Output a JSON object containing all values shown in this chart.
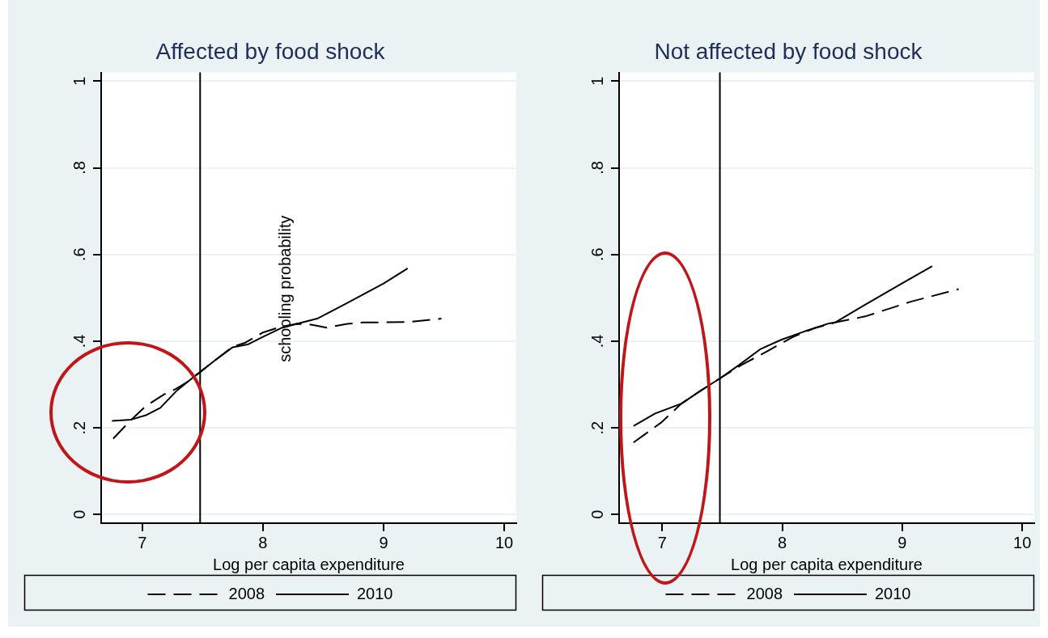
{
  "chart_data": [
    {
      "type": "line",
      "title": "Affected by food shock",
      "xlabel": "Log per capita expenditure",
      "xlim": [
        6.66,
        10.1
      ],
      "xticks": [
        7,
        8,
        9,
        10
      ],
      "ylim": [
        -0.02,
        1.02
      ],
      "yticks": [
        {
          "value": 0,
          "label": "0"
        },
        {
          "value": 0.2,
          "label": ".2"
        },
        {
          "value": 0.4,
          "label": ".4"
        },
        {
          "value": 0.6,
          "label": ".6"
        },
        {
          "value": 0.8,
          "label": ".8"
        },
        {
          "value": 1,
          "label": "1"
        }
      ],
      "grid": "y",
      "legend": "bottom",
      "marker": "none",
      "ref_lines": [
        {
          "axis": "x",
          "value": 7.48,
          "color": "#000000"
        }
      ],
      "annotations": [
        "schooling probability"
      ],
      "series": [
        {
          "name": "2008",
          "color": "#000000",
          "line_style": "dashed",
          "x": [
            6.76,
            6.91,
            7.03,
            7.18,
            7.28,
            7.38,
            7.49,
            7.6,
            7.75,
            7.85,
            8.0,
            8.15,
            8.28,
            8.4,
            8.53,
            8.7,
            8.83,
            9.2,
            9.48
          ],
          "values": [
            0.175,
            0.219,
            0.25,
            0.277,
            0.29,
            0.307,
            0.331,
            0.355,
            0.387,
            0.396,
            0.42,
            0.433,
            0.44,
            0.438,
            0.431,
            0.44,
            0.443,
            0.444,
            0.452
          ]
        },
        {
          "name": "2010",
          "color": "#000000",
          "line_style": "solid",
          "x": [
            6.75,
            6.91,
            7.03,
            7.15,
            7.28,
            7.38,
            7.49,
            7.6,
            7.75,
            7.88,
            8.0,
            8.15,
            8.28,
            8.45,
            8.7,
            9.0,
            9.2
          ],
          "values": [
            0.216,
            0.219,
            0.229,
            0.246,
            0.284,
            0.307,
            0.331,
            0.355,
            0.386,
            0.393,
            0.41,
            0.43,
            0.44,
            0.452,
            0.488,
            0.533,
            0.568
          ]
        }
      ]
    },
    {
      "type": "line",
      "title": "Not affected by food shock",
      "xlabel": "Log per capita expenditure",
      "xlim": [
        6.64,
        10.1
      ],
      "xticks": [
        7,
        8,
        9,
        10
      ],
      "ylim": [
        -0.02,
        1.02
      ],
      "yticks": [
        {
          "value": 0,
          "label": "0"
        },
        {
          "value": 0.2,
          "label": ".2"
        },
        {
          "value": 0.4,
          "label": ".4"
        },
        {
          "value": 0.6,
          "label": ".6"
        },
        {
          "value": 0.8,
          "label": ".8"
        },
        {
          "value": 1,
          "label": "1"
        }
      ],
      "grid": "y",
      "legend": "bottom",
      "marker": "none",
      "ref_lines": [
        {
          "axis": "x",
          "value": 7.48,
          "color": "#000000"
        }
      ],
      "series": [
        {
          "name": "2008",
          "color": "#000000",
          "line_style": "dashed",
          "x": [
            6.76,
            6.99,
            7.16,
            7.31,
            7.48,
            7.66,
            7.89,
            8.09,
            8.27,
            8.44,
            8.69,
            9.07,
            9.47
          ],
          "values": [
            0.166,
            0.212,
            0.256,
            0.284,
            0.314,
            0.345,
            0.379,
            0.41,
            0.43,
            0.443,
            0.457,
            0.491,
            0.52
          ]
        },
        {
          "name": "2010",
          "color": "#000000",
          "line_style": "solid",
          "x": [
            6.76,
            6.94,
            7.16,
            7.31,
            7.48,
            7.64,
            7.82,
            7.99,
            8.19,
            8.39,
            8.44,
            8.69,
            8.99,
            9.25
          ],
          "values": [
            0.204,
            0.233,
            0.256,
            0.284,
            0.314,
            0.345,
            0.382,
            0.403,
            0.423,
            0.441,
            0.443,
            0.484,
            0.532,
            0.573
          ]
        }
      ]
    }
  ]
}
